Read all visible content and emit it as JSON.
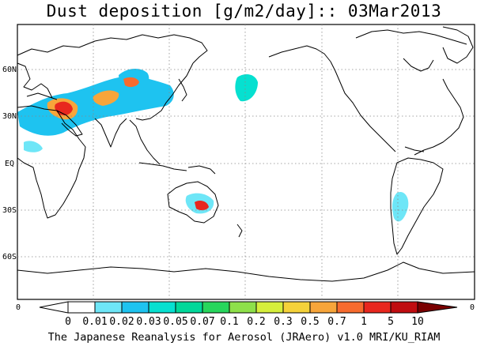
{
  "title": "Dust deposition [g/m2/day]:: 03Mar2013",
  "lat_labels": [
    "60N",
    "30N",
    "EQ",
    "30S",
    "60S"
  ],
  "colorbar": {
    "end_left": "0",
    "end_right": "0",
    "labels": [
      "0",
      "0.01",
      "0.02",
      "0.03",
      "0.05",
      "0.07",
      "0.1",
      "0.2",
      "0.3",
      "0.5",
      "0.7",
      "1",
      "5",
      "10"
    ],
    "colors": [
      "#ffffff",
      "#6ee6f7",
      "#1ec3f0",
      "#06e0d0",
      "#00d89a",
      "#27d65c",
      "#8ee04a",
      "#d6ef3c",
      "#f5d23a",
      "#f7a53a",
      "#f76b2e",
      "#e8271e",
      "#c00d10",
      "#900000"
    ],
    "under_color": "#ffffff",
    "over_color": "#7a0000"
  },
  "credit": "The Japanese Reanalysis for Aerosol (JRAero) v1.0 MRI/KU_RIAM"
}
